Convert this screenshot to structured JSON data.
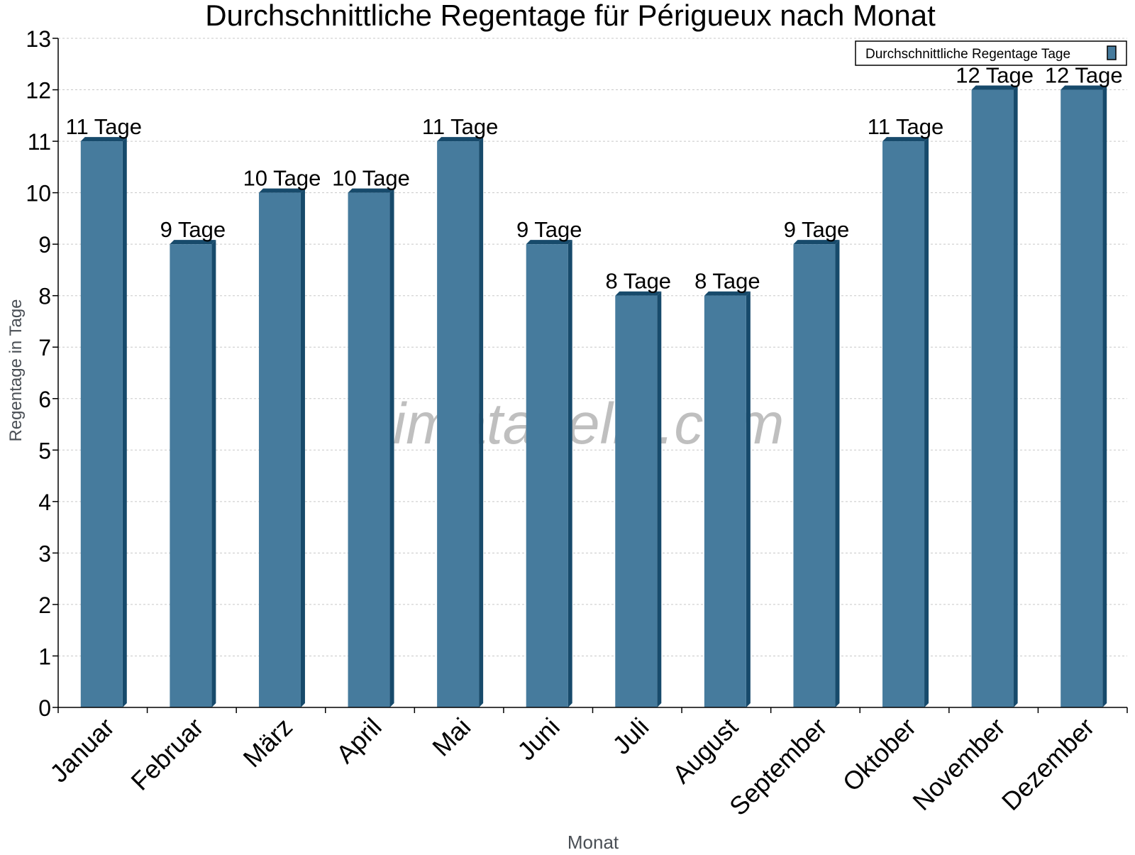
{
  "chart_data": {
    "type": "bar",
    "title": "Durchschnittliche Regentage für Périgueux nach Monat",
    "xlabel": "Monat",
    "ylabel": "Regentage in Tage",
    "categories": [
      "Januar",
      "Februar",
      "März",
      "April",
      "Mai",
      "Juni",
      "Juli",
      "August",
      "September",
      "Oktober",
      "November",
      "Dezember"
    ],
    "series": [
      {
        "name": "Durchschnittliche Regentage Tage",
        "values": [
          11,
          9,
          10,
          10,
          11,
          9,
          8,
          8,
          9,
          11,
          12,
          12
        ]
      }
    ],
    "data_labels": [
      "11 Tage",
      "9 Tage",
      "10 Tage",
      "10 Tage",
      "11 Tage",
      "9 Tage",
      "8 Tage",
      "8 Tage",
      "9 Tage",
      "11 Tage",
      "12 Tage",
      "12 Tage"
    ],
    "ylim": [
      0,
      13
    ],
    "yticks": [
      0,
      1,
      2,
      3,
      4,
      5,
      6,
      7,
      8,
      9,
      10,
      11,
      12,
      13
    ],
    "grid": true,
    "legend_position": "top-right",
    "colors": {
      "bar": "#467b9d",
      "bar_side": "#174a6b",
      "grid": "#c8c8c8"
    },
    "watermark": "klimatabelle.com"
  }
}
